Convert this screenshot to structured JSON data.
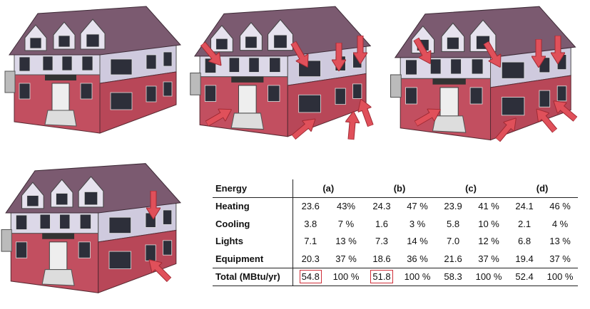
{
  "table": {
    "header": [
      "Energy",
      "(a)",
      "(b)",
      "(c)",
      "(d)"
    ],
    "rows": [
      {
        "label": "Heating",
        "cells": [
          "23.6",
          "43%",
          "24.3",
          "47 %",
          "23.9",
          "41 %",
          "24.1",
          "46 %"
        ]
      },
      {
        "label": "Cooling",
        "cells": [
          "3.8",
          "7 %",
          "1.6",
          "3 %",
          "5.8",
          "10 %",
          "2.1",
          "4 %"
        ]
      },
      {
        "label": "Lights",
        "cells": [
          "7.1",
          "13 %",
          "7.3",
          "14 %",
          "7.0",
          "12 %",
          "6.8",
          "13 %"
        ]
      },
      {
        "label": "Equipment",
        "cells": [
          "20.3",
          "37 %",
          "18.6",
          "36 %",
          "21.6",
          "37 %",
          "19.4",
          "37 %"
        ]
      },
      {
        "label": "Total (MBtu/yr)",
        "cells": [
          "54.8",
          "100 %",
          "51.8",
          "100 %",
          "58.3",
          "100 %",
          "52.4",
          "100 %"
        ]
      }
    ]
  }
}
